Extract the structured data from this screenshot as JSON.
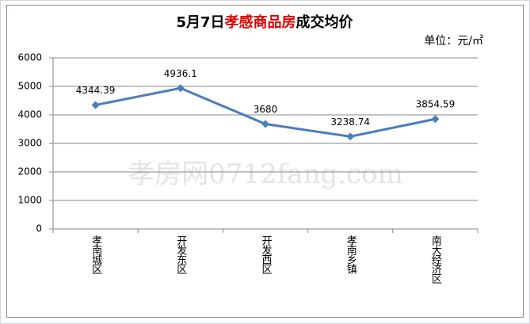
{
  "chart_data": {
    "type": "line",
    "title_segments": [
      {
        "text": "5月7日",
        "color": "#000000"
      },
      {
        "text": "孝感商品房",
        "color": "#e00000"
      },
      {
        "text": "成交均价",
        "color": "#000000"
      }
    ],
    "unit": "单位：元/㎡",
    "watermark": "孝房网0712fang.com",
    "categories": [
      "孝南城区",
      "开发东区",
      "开发西区",
      "孝南乡镇",
      "南大经济区"
    ],
    "series": [
      {
        "name": "成交均价",
        "color": "#4a7ebb",
        "values": [
          4344.39,
          4936.1,
          3680,
          3238.74,
          3854.59
        ]
      }
    ],
    "ylim": [
      0,
      6000
    ],
    "yticks": [
      0,
      1000,
      2000,
      3000,
      4000,
      5000,
      6000
    ],
    "grid": true
  }
}
